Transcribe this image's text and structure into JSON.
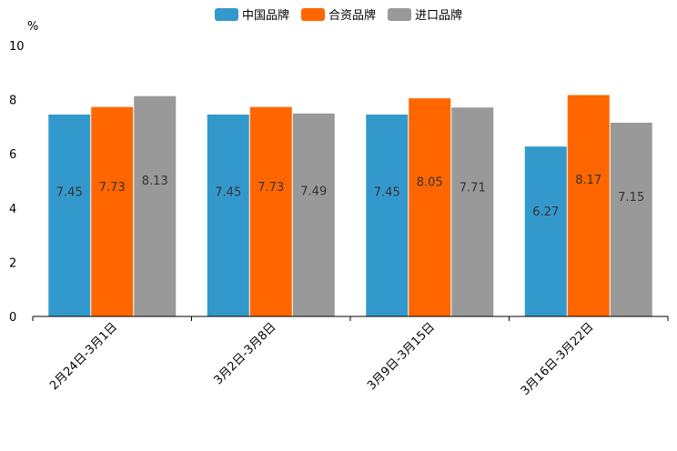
{
  "chart_data": {
    "type": "bar",
    "title": "",
    "unit_label": "%",
    "xlabel": "",
    "ylabel": "",
    "categories": [
      "2月24日-3月1日",
      "3月2日-3月8日",
      "3月9日-3月15日",
      "3月16日-3月22日"
    ],
    "series": [
      {
        "name": "中国品牌",
        "color": "#3399CC",
        "values": [
          7.45,
          7.45,
          7.45,
          6.27
        ]
      },
      {
        "name": "合资品牌",
        "color": "#FF6600",
        "values": [
          7.73,
          7.73,
          8.05,
          8.17
        ]
      },
      {
        "name": "进口品牌",
        "color": "#999999",
        "values": [
          8.13,
          7.49,
          7.71,
          7.15
        ]
      }
    ],
    "ylim": [
      0,
      10
    ],
    "yticks": [
      0,
      2,
      4,
      6,
      8,
      10
    ],
    "legend_position": "top-center",
    "grid": false
  }
}
